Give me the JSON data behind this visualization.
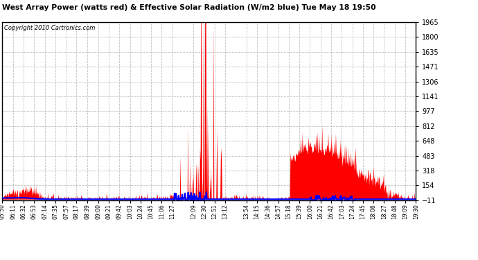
{
  "title": "West Array Power (watts red) & Effective Solar Radiation (W/m2 blue) Tue May 18 19:50",
  "copyright": "Copyright 2010 Cartronics.com",
  "background_color": "#ffffff",
  "plot_bg_color": "#ffffff",
  "ymin": -11.1,
  "ymax": 1964.6,
  "yticks": [
    -11.1,
    153.6,
    318.2,
    482.8,
    647.5,
    812.1,
    976.8,
    1141.4,
    1306.0,
    1470.7,
    1635.3,
    1799.9,
    1964.6
  ],
  "xtick_labels": [
    "05:50",
    "06:11",
    "06:32",
    "06:53",
    "07:14",
    "07:35",
    "07:57",
    "08:17",
    "08:39",
    "09:00",
    "09:21",
    "09:42",
    "10:03",
    "10:24",
    "10:45",
    "11:06",
    "11:27",
    "12:09",
    "12:30",
    "12:51",
    "13:12",
    "13:54",
    "14:15",
    "14:36",
    "14:57",
    "15:18",
    "15:39",
    "16:00",
    "16:21",
    "16:42",
    "17:03",
    "17:24",
    "17:45",
    "18:06",
    "18:27",
    "18:48",
    "19:09",
    "19:30"
  ],
  "red_fill_color": "#ff0000",
  "blue_line_color": "#0000ff",
  "grid_color": "#bbbbbb",
  "grid_style": "--"
}
